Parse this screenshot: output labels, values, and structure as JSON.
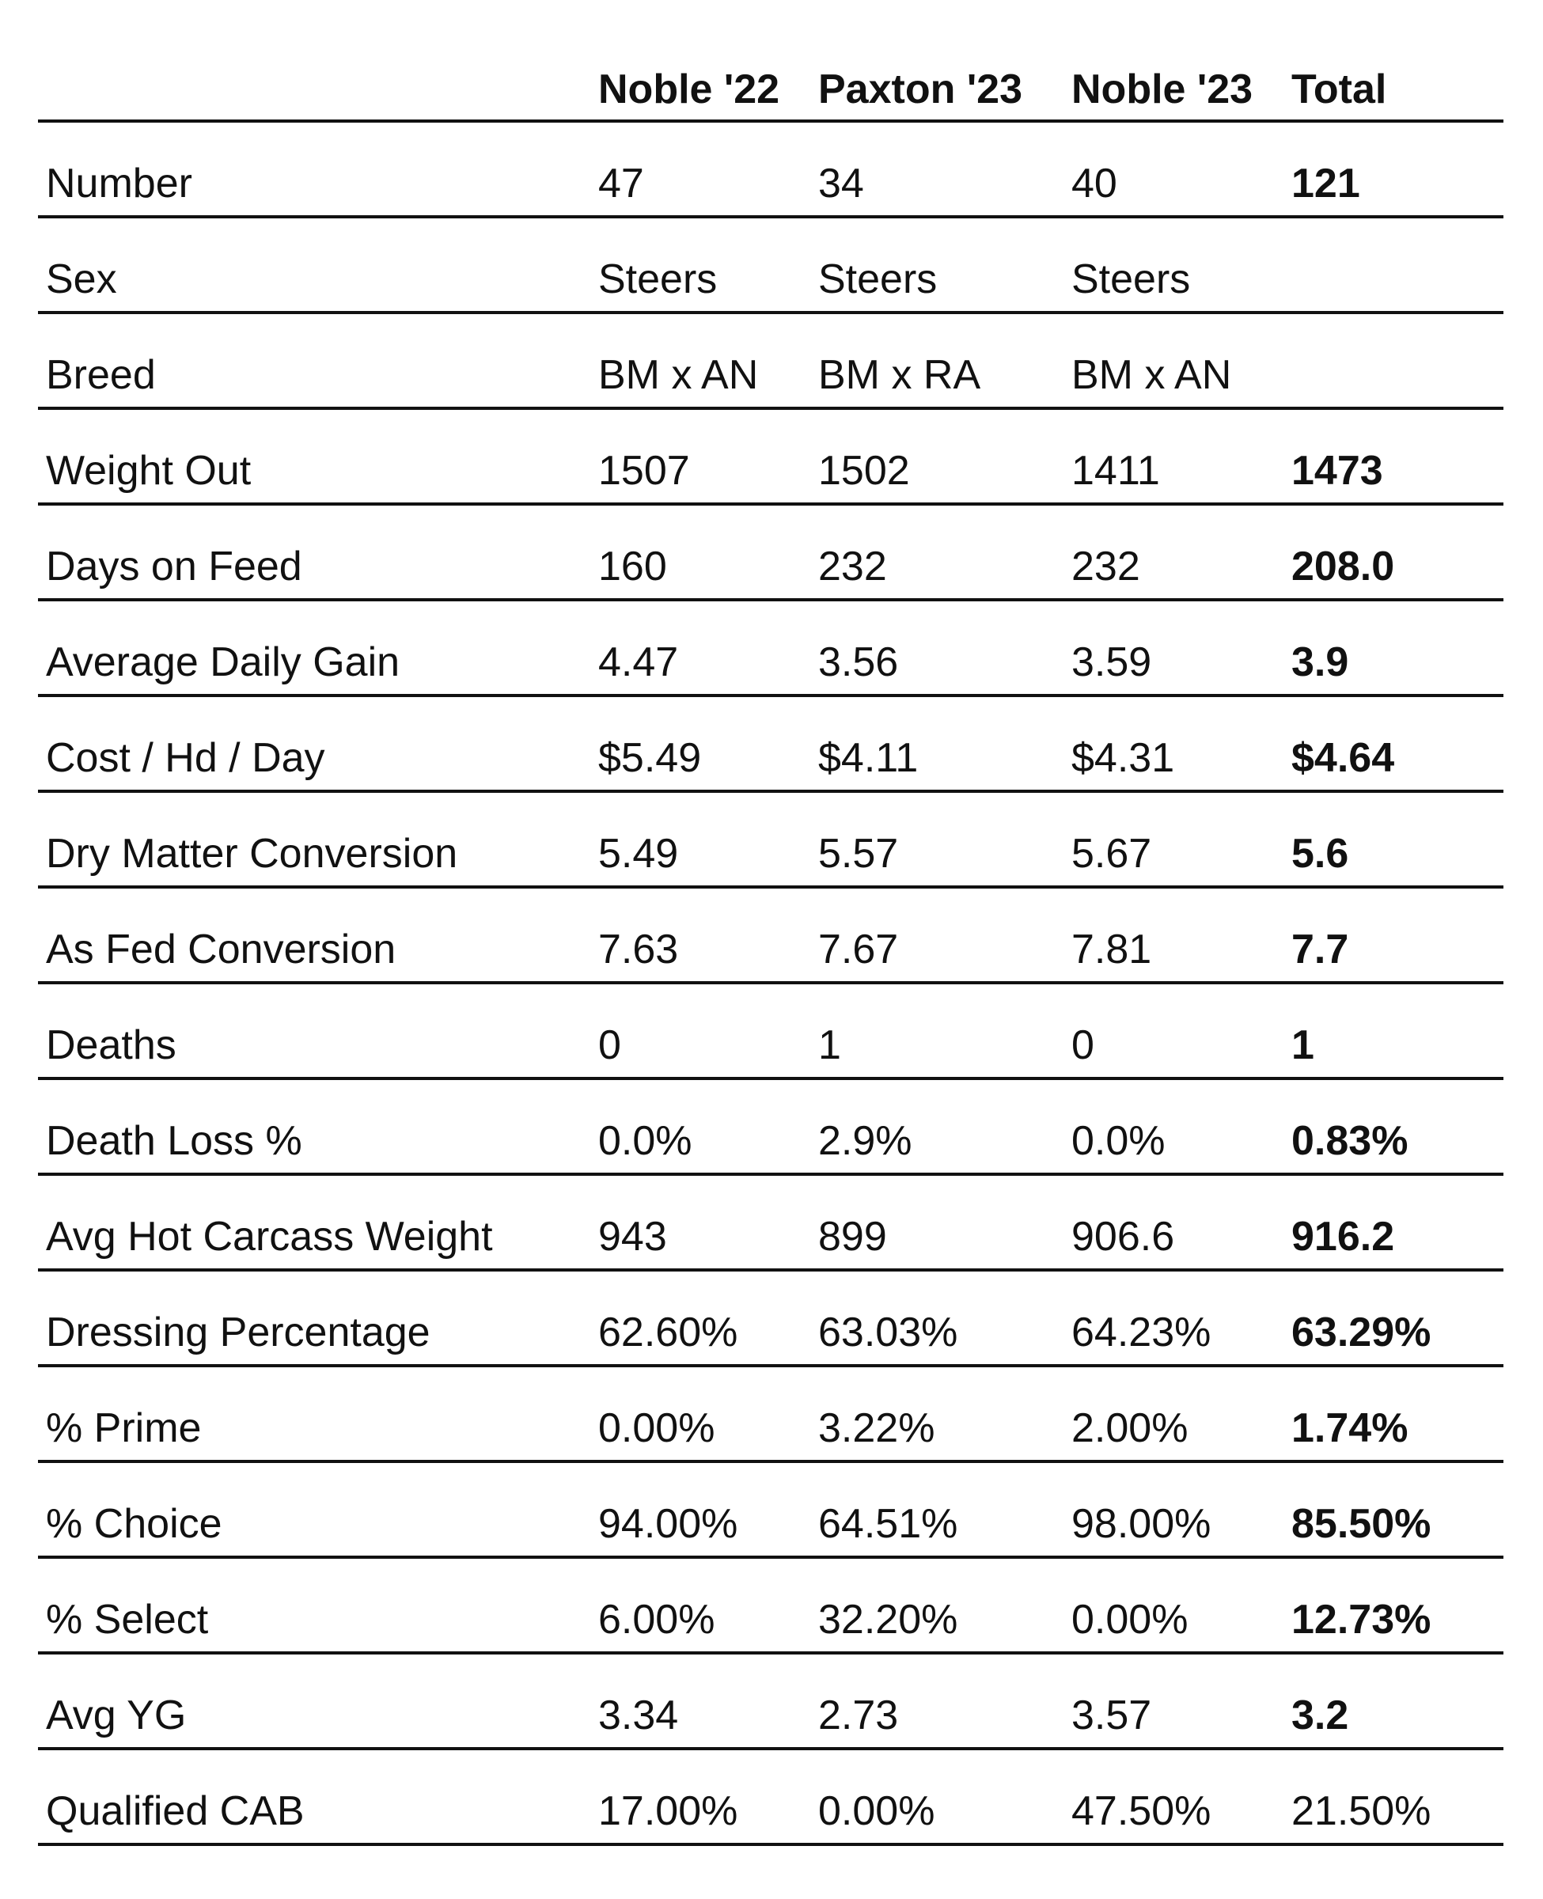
{
  "table": {
    "columns": [
      "",
      "Noble '22",
      "Paxton '23",
      "Noble '23",
      "Total"
    ],
    "rows": [
      {
        "label": "Number",
        "values": [
          "47",
          "34",
          "40"
        ],
        "total": "121",
        "total_bold": true
      },
      {
        "label": "Sex",
        "values": [
          "Steers",
          "Steers",
          "Steers"
        ],
        "total": "",
        "total_bold": true
      },
      {
        "label": "Breed",
        "values": [
          "BM x AN",
          "BM x RA",
          "BM x AN"
        ],
        "total": "",
        "total_bold": true
      },
      {
        "label": "Weight Out",
        "values": [
          "1507",
          "1502",
          "1411"
        ],
        "total": "1473",
        "total_bold": true
      },
      {
        "label": "Days on Feed",
        "values": [
          "160",
          "232",
          "232"
        ],
        "total": "208.0",
        "total_bold": true
      },
      {
        "label": "Average Daily Gain",
        "values": [
          "4.47",
          "3.56",
          "3.59"
        ],
        "total": "3.9",
        "total_bold": true
      },
      {
        "label": "Cost / Hd / Day",
        "values": [
          "$5.49",
          "$4.11",
          "$4.31"
        ],
        "total": "$4.64",
        "total_bold": true
      },
      {
        "label": "Dry Matter Conversion",
        "values": [
          "5.49",
          "5.57",
          "5.67"
        ],
        "total": "5.6",
        "total_bold": true
      },
      {
        "label": "As Fed Conversion",
        "values": [
          "7.63",
          "7.67",
          "7.81"
        ],
        "total": "7.7",
        "total_bold": true
      },
      {
        "label": "Deaths",
        "values": [
          "0",
          "1",
          "0"
        ],
        "total": "1",
        "total_bold": true
      },
      {
        "label": "Death Loss %",
        "values": [
          "0.0%",
          "2.9%",
          "0.0%"
        ],
        "total": "0.83%",
        "total_bold": true
      },
      {
        "label": "Avg Hot Carcass Weight",
        "values": [
          "943",
          "899",
          "906.6"
        ],
        "total": "916.2",
        "total_bold": true
      },
      {
        "label": "Dressing Percentage",
        "values": [
          "62.60%",
          "63.03%",
          "64.23%"
        ],
        "total": "63.29%",
        "total_bold": true
      },
      {
        "label": "% Prime",
        "values": [
          "0.00%",
          "3.22%",
          "2.00%"
        ],
        "total": "1.74%",
        "total_bold": true
      },
      {
        "label": "% Choice",
        "values": [
          "94.00%",
          "64.51%",
          "98.00%"
        ],
        "total": "85.50%",
        "total_bold": true
      },
      {
        "label": "% Select",
        "values": [
          "6.00%",
          "32.20%",
          "0.00%"
        ],
        "total": "12.73%",
        "total_bold": true
      },
      {
        "label": "Avg YG",
        "values": [
          "3.34",
          "2.73",
          "3.57"
        ],
        "total": "3.2",
        "total_bold": true
      },
      {
        "label": "Qualified CAB",
        "values": [
          "17.00%",
          "0.00%",
          "47.50%"
        ],
        "total": "21.50%",
        "total_bold": false
      }
    ]
  }
}
